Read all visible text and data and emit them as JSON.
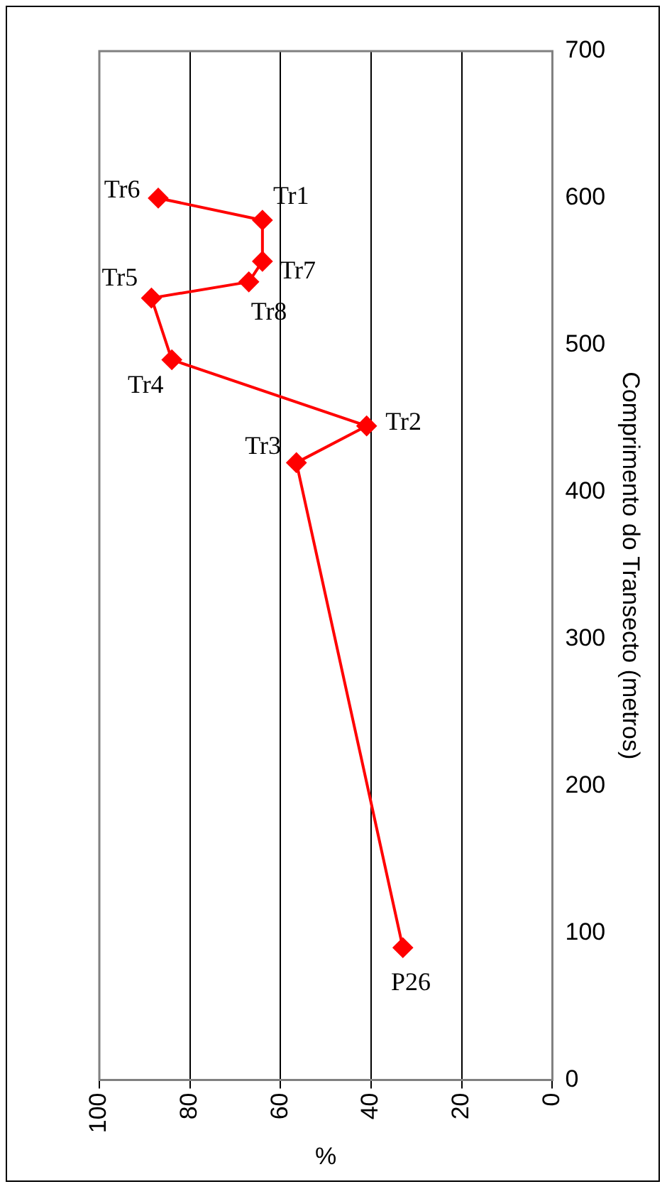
{
  "chart_data": {
    "type": "line",
    "orientation": "horizontal",
    "xlabel": "%",
    "ylabel": "Comprimento do Transecto (metros)",
    "x": [
      90,
      420,
      445,
      490,
      532,
      543,
      557,
      585,
      600
    ],
    "series": [
      {
        "color": "#ff0000",
        "values": [
          33,
          56.5,
          41,
          84,
          88.5,
          67,
          64,
          64,
          87
        ]
      }
    ],
    "xlim": [
      100,
      0
    ],
    "xticks": [
      0,
      20,
      40,
      60,
      80,
      100
    ],
    "ylim": [
      0,
      700
    ],
    "yticks": [
      0,
      100,
      200,
      300,
      400,
      500,
      600,
      700
    ],
    "grid": "x",
    "legend": false,
    "marker": "diamond",
    "line_style": "solid",
    "annotations": [
      {
        "text": "Tr6",
        "x": 87,
        "y": 600
      },
      {
        "text": "Tr1",
        "x": 64,
        "y": 585
      },
      {
        "text": "Tr5",
        "x": 88.5,
        "y": 532
      },
      {
        "text": "Tr7",
        "x": 64,
        "y": 557
      },
      {
        "text": "Tr8",
        "x": 67,
        "y": 543
      },
      {
        "text": "Tr4",
        "x": 84,
        "y": 490
      },
      {
        "text": "Tr2",
        "x": 41,
        "y": 445
      },
      {
        "text": "Tr3",
        "x": 56.5,
        "y": 420
      },
      {
        "text": "P26",
        "x": 33,
        "y": 90
      }
    ]
  }
}
